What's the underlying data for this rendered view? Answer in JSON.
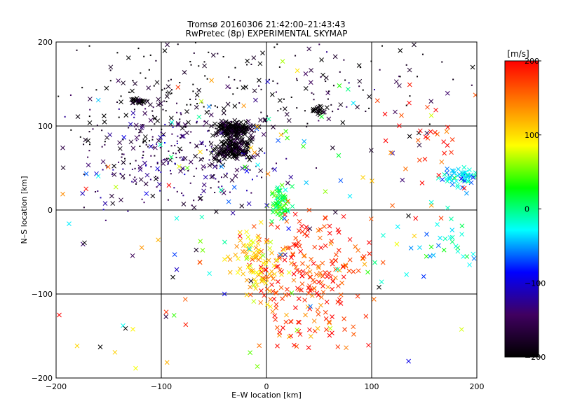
{
  "chart_data": {
    "type": "scatter",
    "title": "Tromsø 20160306 21:42:00–21:43:43",
    "subtitle": "RwPretec (8p) EXPERIMENTAL SKYMAP",
    "xlabel": "E–W location [km]",
    "ylabel": "N–S location [km]",
    "xlim": [
      -200,
      200
    ],
    "ylim": [
      -200,
      200
    ],
    "xticks": [
      -200,
      -100,
      0,
      100,
      200
    ],
    "yticks": [
      -200,
      -100,
      0,
      100,
      200
    ],
    "xtick_labels": [
      "−200",
      "−100",
      "0",
      "100",
      "200"
    ],
    "ytick_labels": [
      "−200",
      "−100",
      "0",
      "100",
      "200"
    ],
    "grid": true,
    "markers": [
      "dot",
      "x"
    ],
    "colorbar": {
      "label": "[m/s]",
      "range": [
        -200,
        200
      ],
      "ticks": [
        200,
        100,
        0,
        -100,
        -200
      ],
      "tick_labels": [
        "200",
        "100",
        "0",
        "−100",
        "−200"
      ],
      "colormap": [
        "#000000",
        "#400060",
        "#0000ff",
        "#00ffff",
        "#00ff00",
        "#ffff00",
        "#ff8000",
        "#ff0000"
      ]
    },
    "clusters": [
      {
        "x": -30,
        "y": 95,
        "sx": 8,
        "sy": 5,
        "v": -200,
        "marker": "x"
      },
      {
        "x": -30,
        "y": 72,
        "sx": 9,
        "sy": 6,
        "v": -200,
        "marker": "x"
      },
      {
        "x": -122,
        "y": 130,
        "sx": 4,
        "sy": 2,
        "v": -200,
        "marker": "x"
      },
      {
        "x": 49,
        "y": 119,
        "sx": 4,
        "sy": 3,
        "v": -200,
        "marker": "x"
      },
      {
        "x": 14,
        "y": 8,
        "sx": 5,
        "sy": 9,
        "v": 20,
        "marker": "x"
      },
      {
        "x": 185,
        "y": 40,
        "sx": 10,
        "sy": 6,
        "v": -40,
        "marker": "x"
      },
      {
        "x": 40,
        "y": -80,
        "sx": 28,
        "sy": 38,
        "v": 180,
        "marker": "x"
      },
      {
        "x": -10,
        "y": -60,
        "sx": 15,
        "sy": 22,
        "v": 110,
        "marker": "x"
      },
      {
        "x": -80,
        "y": 60,
        "sx": 45,
        "sy": 30,
        "v": -150,
        "marker": "dot"
      },
      {
        "x": -80,
        "y": 140,
        "sx": 65,
        "sy": 35,
        "v": -200,
        "marker": "dot"
      },
      {
        "x": 60,
        "y": 150,
        "sx": 60,
        "sy": 30,
        "v": -180,
        "marker": "dot"
      },
      {
        "x": 150,
        "y": 70,
        "sx": 25,
        "sy": 35,
        "v": 190,
        "marker": "x"
      },
      {
        "x": 170,
        "y": -40,
        "sx": 20,
        "sy": 20,
        "v": -20,
        "marker": "x"
      },
      {
        "x": 0,
        "y": 0,
        "sx": 110,
        "sy": 110,
        "v": 50,
        "marker": "x"
      }
    ],
    "points": [
      {
        "x": -45,
        "y": 99,
        "v": -200,
        "marker": "x"
      },
      {
        "x": -19,
        "y": 98,
        "v": -200,
        "marker": "x"
      },
      {
        "x": -134,
        "y": -141,
        "v": -200,
        "marker": "x"
      },
      {
        "x": -158,
        "y": -163,
        "v": -200,
        "marker": "x"
      },
      {
        "x": -197,
        "y": -125,
        "v": 200,
        "marker": "x"
      },
      {
        "x": -127,
        "y": -142,
        "v": 90,
        "marker": "x"
      },
      {
        "x": -173,
        "y": -39,
        "v": -200,
        "marker": "x"
      },
      {
        "x": -89,
        "y": -80,
        "v": -200,
        "marker": "x"
      },
      {
        "x": 56,
        "y": 22,
        "v": 60,
        "marker": "x"
      },
      {
        "x": 161,
        "y": 119,
        "v": 200,
        "marker": "x"
      },
      {
        "x": 172,
        "y": 77,
        "v": 200,
        "marker": "x"
      },
      {
        "x": 107,
        "y": -92,
        "v": -200,
        "marker": "x"
      },
      {
        "x": 97,
        "y": -161,
        "v": 200,
        "marker": "x"
      },
      {
        "x": 196,
        "y": 170,
        "v": -200,
        "marker": "x"
      },
      {
        "x": 135,
        "y": -7,
        "v": -200,
        "marker": "x"
      }
    ]
  }
}
